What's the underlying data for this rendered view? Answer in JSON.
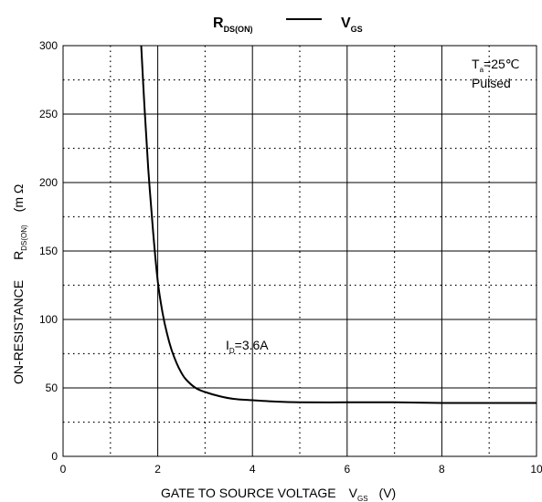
{
  "chart_data": {
    "type": "line",
    "title": {
      "left_main": "R",
      "left_sub": "DS(ON)",
      "right_main": "V",
      "right_sub": "GS"
    },
    "xlabel": {
      "text": "GATE TO SOURCE VOLTAGE",
      "symbol": "V",
      "symbol_sub": "GS",
      "unit": "(V)"
    },
    "ylabel": {
      "text": "ON-RESISTANCE",
      "symbol": "R",
      "symbol_sub": "DS(ON)",
      "unit": "(m Ω"
    },
    "xlim": [
      0,
      10
    ],
    "ylim": [
      0,
      300
    ],
    "x_ticks": [
      "0",
      "2",
      "4",
      "6",
      "8",
      "10"
    ],
    "y_ticks": [
      "0",
      "50",
      "100",
      "150",
      "200",
      "250",
      "300"
    ],
    "grid": true,
    "series": [
      {
        "x": [
          1.65,
          1.72,
          1.8,
          1.9,
          2.0,
          2.1,
          2.2,
          2.3,
          2.4,
          2.5,
          2.6,
          2.8,
          3.0,
          3.3,
          3.6,
          4.0,
          4.5,
          5.0,
          6.0,
          7.0,
          8.0,
          9.0,
          10.0
        ],
        "y": [
          300,
          255,
          210,
          165,
          128,
          105,
          89,
          77,
          68,
          61,
          56,
          50,
          47,
          44,
          42,
          41,
          40,
          39.5,
          39.5,
          39.5,
          39,
          39,
          39
        ]
      }
    ],
    "annotations": {
      "current": {
        "main": "I",
        "sub": "D",
        "value": "=3.6A"
      },
      "temp": {
        "main": "T",
        "sub": "a",
        "value": "=25℃"
      },
      "mode": "Pulsed"
    }
  }
}
